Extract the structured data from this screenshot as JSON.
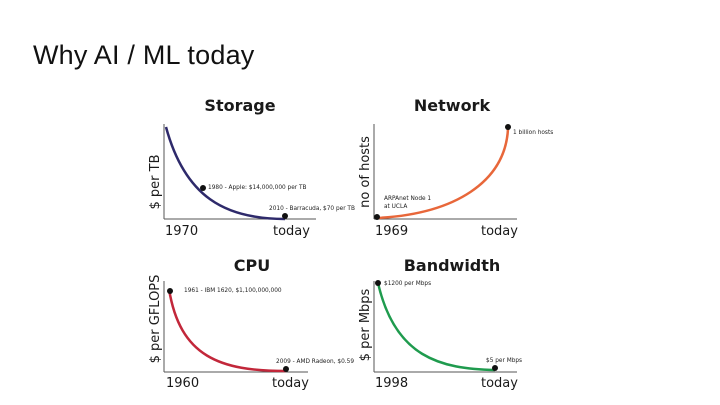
{
  "slide": {
    "title": "Why AI / ML today"
  },
  "chart_data": [
    {
      "type": "line",
      "title": "Storage",
      "ylabel": "$ per TB",
      "x_ticks": [
        "1970",
        "today"
      ],
      "curve": "decay",
      "color": "#2e2a6b",
      "points": [
        {
          "x": "1980",
          "label": "1980 - Apple: $14,000,000 per TB"
        },
        {
          "x": "2010",
          "label": "2010 - Barracuda, $70 per TB"
        }
      ]
    },
    {
      "type": "line",
      "title": "Network",
      "ylabel": "no of hosts",
      "x_ticks": [
        "1969",
        "today"
      ],
      "curve": "growth",
      "color": "#e8673a",
      "points": [
        {
          "x": "1969",
          "label_lines": [
            "ARPAnet Node 1",
            "at UCLA"
          ]
        },
        {
          "x": "today",
          "label": "1 billion hosts"
        }
      ]
    },
    {
      "type": "line",
      "title": "CPU",
      "ylabel": "$ per GFLOPS",
      "x_ticks": [
        "1960",
        "today"
      ],
      "curve": "decay",
      "color": "#c2273a",
      "points": [
        {
          "x": "1961",
          "label": "1961 - IBM 1620, $1,100,000,000"
        },
        {
          "x": "2009",
          "label": "2009 - AMD Radeon, $0.59"
        }
      ]
    },
    {
      "type": "line",
      "title": "Bandwidth",
      "ylabel": "$ per Mbps",
      "x_ticks": [
        "1998",
        "today"
      ],
      "curve": "decay",
      "color": "#1f9b4e",
      "points": [
        {
          "x": "1998",
          "label": "$1200 per Mbps"
        },
        {
          "x": "today",
          "label": "$5 per Mbps"
        }
      ]
    }
  ]
}
